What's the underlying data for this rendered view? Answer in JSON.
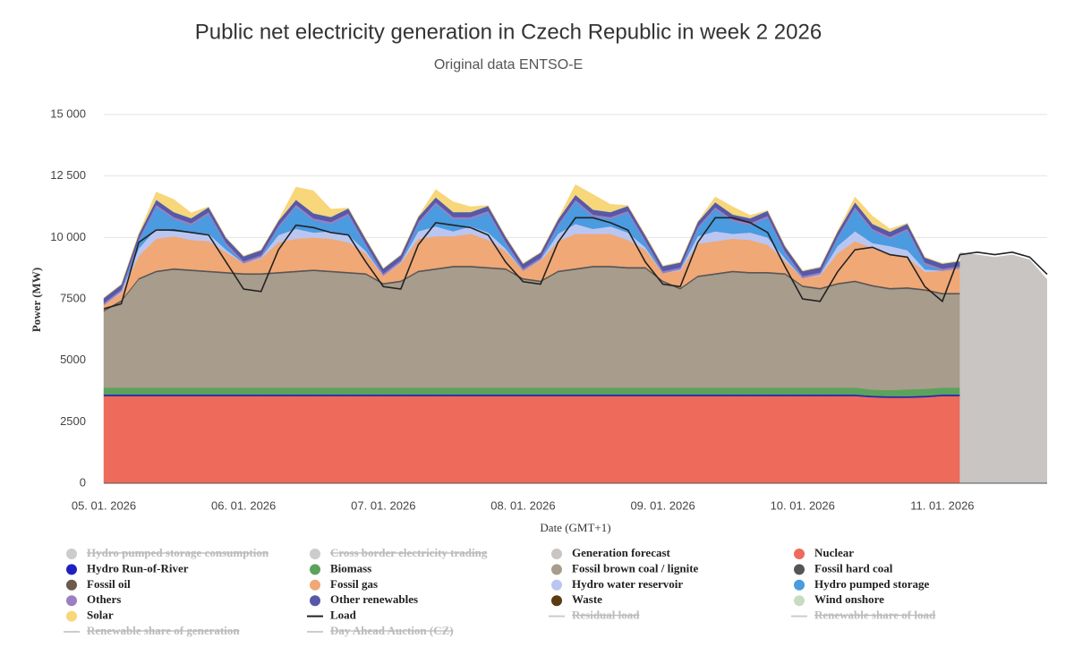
{
  "chart_data": {
    "type": "area",
    "title": "Public net electricity generation in Czech Republic in week 2 2026",
    "subtitle": "Original data ENTSO-E",
    "x_label": "Date (GMT+1)",
    "y_label": "Power (MW)",
    "ylim": [
      0,
      15000
    ],
    "yticks": [
      0,
      2500,
      5000,
      7500,
      {
        "value": 10000,
        "label": "10 000"
      },
      {
        "value": 12500,
        "label": "12 500"
      },
      {
        "value": 15000,
        "label": "15 000"
      }
    ],
    "grid": true,
    "categories": [
      "05. 01. 2026",
      null,
      null,
      null,
      null,
      null,
      null,
      null,
      "06. 01. 2026",
      null,
      null,
      null,
      null,
      null,
      null,
      null,
      "07. 01. 2026",
      null,
      null,
      null,
      null,
      null,
      null,
      null,
      "08. 01. 2026",
      null,
      null,
      null,
      null,
      null,
      null,
      null,
      "09. 01. 2026",
      null,
      null,
      null,
      null,
      null,
      null,
      null,
      "10. 01. 2026",
      null,
      null,
      null,
      null,
      null,
      null,
      null,
      "11. 01. 2026",
      null,
      null,
      null,
      null,
      null,
      null
    ],
    "series": [
      {
        "name": "Hydro pumped storage consumption",
        "type": "area",
        "color": "#cccccc",
        "visible": false
      },
      {
        "name": "Cross border electricity trading",
        "type": "area",
        "color": "#cccccc",
        "visible": false
      },
      {
        "name": "Generation forecast",
        "type": "area",
        "stack": false,
        "color": "#c8c5c2",
        "values": [
          null,
          null,
          null,
          null,
          null,
          null,
          null,
          null,
          null,
          null,
          null,
          null,
          null,
          null,
          null,
          null,
          null,
          null,
          null,
          null,
          null,
          null,
          null,
          null,
          null,
          null,
          null,
          null,
          null,
          null,
          null,
          null,
          null,
          null,
          null,
          null,
          null,
          null,
          null,
          null,
          null,
          null,
          null,
          null,
          null,
          null,
          null,
          null,
          null,
          9400,
          9300,
          9200,
          9300,
          9100,
          8300
        ]
      },
      {
        "name": "Nuclear",
        "type": "area",
        "color": "#ee6a5a",
        "values": [
          3550,
          3550,
          3550,
          3550,
          3550,
          3550,
          3550,
          3550,
          3550,
          3550,
          3550,
          3550,
          3550,
          3550,
          3550,
          3550,
          3550,
          3550,
          3550,
          3550,
          3550,
          3550,
          3550,
          3550,
          3550,
          3550,
          3550,
          3550,
          3550,
          3550,
          3550,
          3550,
          3550,
          3550,
          3550,
          3550,
          3550,
          3550,
          3550,
          3550,
          3550,
          3550,
          3550,
          3550,
          3500,
          3480,
          3480,
          3500,
          3550,
          3550,
          null,
          null,
          null,
          null,
          null
        ]
      },
      {
        "name": "Hydro Run-of-River",
        "type": "area",
        "color": "#2020c0",
        "values": [
          60,
          60,
          60,
          60,
          60,
          60,
          60,
          60,
          60,
          60,
          60,
          60,
          60,
          60,
          60,
          60,
          60,
          60,
          60,
          60,
          60,
          60,
          60,
          60,
          60,
          60,
          60,
          60,
          60,
          60,
          60,
          60,
          60,
          60,
          60,
          60,
          60,
          60,
          60,
          60,
          60,
          60,
          60,
          60,
          60,
          60,
          60,
          60,
          60,
          60,
          null,
          null,
          null,
          null,
          null
        ]
      },
      {
        "name": "Biomass",
        "type": "area",
        "color": "#5aa35a",
        "values": [
          280,
          280,
          280,
          280,
          280,
          280,
          280,
          280,
          280,
          280,
          280,
          280,
          280,
          280,
          280,
          280,
          280,
          280,
          280,
          280,
          280,
          280,
          280,
          280,
          280,
          280,
          280,
          280,
          280,
          280,
          280,
          280,
          280,
          280,
          280,
          280,
          280,
          280,
          280,
          280,
          280,
          280,
          280,
          280,
          250,
          250,
          280,
          280,
          280,
          280,
          null,
          null,
          null,
          null,
          null
        ]
      },
      {
        "name": "Fossil brown coal / lignite",
        "type": "area",
        "color": "#a89c8c",
        "values": [
          3100,
          3500,
          4400,
          4700,
          4800,
          4750,
          4700,
          4650,
          4600,
          4600,
          4650,
          4700,
          4750,
          4700,
          4650,
          4600,
          4200,
          4300,
          4700,
          4800,
          4900,
          4900,
          4850,
          4800,
          4400,
          4300,
          4700,
          4800,
          4900,
          4900,
          4850,
          4850,
          4300,
          4000,
          4500,
          4600,
          4700,
          4650,
          4650,
          4600,
          4100,
          4000,
          4200,
          4300,
          4200,
          4100,
          4100,
          4000,
          3800,
          3800,
          null,
          null,
          null,
          null,
          null
        ]
      },
      {
        "name": "Fossil hard coal",
        "type": "area",
        "color": "#555555",
        "values": [
          60,
          60,
          60,
          60,
          60,
          60,
          60,
          60,
          60,
          60,
          60,
          60,
          60,
          60,
          60,
          60,
          60,
          60,
          60,
          60,
          60,
          60,
          60,
          60,
          60,
          60,
          60,
          60,
          60,
          60,
          60,
          60,
          60,
          60,
          60,
          60,
          60,
          60,
          60,
          60,
          60,
          60,
          60,
          60,
          60,
          60,
          60,
          60,
          60,
          60,
          null,
          null,
          null,
          null,
          null
        ]
      },
      {
        "name": "Fossil oil",
        "type": "area",
        "color": "#6d5a4a",
        "values": [
          0,
          0,
          0,
          0,
          0,
          0,
          0,
          0,
          0,
          0,
          0,
          0,
          0,
          0,
          0,
          0,
          0,
          0,
          0,
          0,
          0,
          0,
          0,
          0,
          0,
          0,
          0,
          0,
          0,
          0,
          0,
          0,
          0,
          0,
          0,
          0,
          0,
          0,
          0,
          0,
          0,
          0,
          0,
          0,
          0,
          0,
          0,
          0,
          0,
          0,
          null,
          null,
          null,
          null,
          null
        ]
      },
      {
        "name": "Fossil gas",
        "type": "area",
        "color": "#f0a876",
        "values": [
          200,
          300,
          900,
          1300,
          1300,
          1200,
          1200,
          800,
          400,
          600,
          1200,
          1300,
          1300,
          1300,
          1200,
          800,
          300,
          700,
          1300,
          1300,
          1200,
          1300,
          1100,
          700,
          300,
          800,
          1200,
          1400,
          1300,
          1300,
          1100,
          700,
          300,
          700,
          1300,
          1300,
          1300,
          1300,
          1100,
          500,
          300,
          500,
          1200,
          1600,
          1500,
          1400,
          1200,
          700,
          900,
          1000,
          null,
          null,
          null,
          null,
          null
        ]
      },
      {
        "name": "Hydro water reservoir",
        "type": "area",
        "color": "#bac6f2",
        "values": [
          0,
          50,
          300,
          400,
          200,
          300,
          300,
          100,
          0,
          50,
          300,
          400,
          200,
          300,
          300,
          100,
          0,
          50,
          300,
          400,
          200,
          300,
          300,
          100,
          0,
          50,
          300,
          400,
          200,
          300,
          300,
          100,
          0,
          50,
          300,
          400,
          200,
          300,
          300,
          100,
          0,
          50,
          300,
          400,
          200,
          300,
          300,
          100,
          0,
          0,
          null,
          null,
          null,
          null,
          null
        ]
      },
      {
        "name": "Hydro pumped storage",
        "type": "area",
        "color": "#4a9be0",
        "values": [
          0,
          0,
          300,
          900,
          500,
          300,
          800,
          200,
          0,
          0,
          300,
          900,
          500,
          300,
          800,
          200,
          0,
          0,
          300,
          900,
          500,
          300,
          800,
          200,
          0,
          0,
          300,
          900,
          500,
          300,
          800,
          200,
          0,
          0,
          300,
          900,
          500,
          300,
          800,
          200,
          0,
          0,
          300,
          900,
          500,
          300,
          800,
          200,
          0,
          0,
          null,
          null,
          null,
          null,
          null
        ]
      },
      {
        "name": "Others",
        "type": "area",
        "color": "#9a80c0",
        "values": [
          80,
          80,
          80,
          80,
          80,
          80,
          80,
          80,
          80,
          80,
          80,
          80,
          80,
          80,
          80,
          80,
          80,
          80,
          80,
          80,
          80,
          80,
          80,
          80,
          80,
          80,
          80,
          80,
          80,
          80,
          80,
          80,
          80,
          80,
          80,
          80,
          80,
          80,
          80,
          80,
          80,
          80,
          80,
          80,
          80,
          80,
          80,
          80,
          80,
          80,
          null,
          null,
          null,
          null,
          null
        ]
      },
      {
        "name": "Other renewables",
        "type": "area",
        "color": "#5858a8",
        "values": [
          200,
          200,
          200,
          200,
          200,
          200,
          200,
          200,
          200,
          200,
          200,
          200,
          200,
          200,
          200,
          200,
          200,
          200,
          200,
          200,
          200,
          200,
          200,
          200,
          200,
          200,
          200,
          200,
          200,
          200,
          200,
          200,
          200,
          200,
          200,
          200,
          200,
          200,
          200,
          200,
          200,
          200,
          200,
          200,
          200,
          200,
          200,
          200,
          200,
          200,
          null,
          null,
          null,
          null,
          null
        ]
      },
      {
        "name": "Waste",
        "type": "area",
        "color": "#5a3a10",
        "values": [
          0,
          0,
          0,
          0,
          0,
          0,
          0,
          0,
          0,
          0,
          0,
          0,
          0,
          0,
          0,
          0,
          0,
          0,
          0,
          0,
          0,
          0,
          0,
          0,
          0,
          0,
          0,
          0,
          0,
          0,
          0,
          0,
          0,
          0,
          0,
          0,
          0,
          0,
          0,
          0,
          0,
          0,
          0,
          0,
          0,
          0,
          0,
          0,
          0,
          0,
          null,
          null,
          null,
          null,
          null
        ]
      },
      {
        "name": "Wind onshore",
        "type": "area",
        "color": "#c8dcc0",
        "values": [
          20,
          20,
          20,
          20,
          20,
          20,
          20,
          20,
          20,
          20,
          20,
          20,
          20,
          20,
          20,
          20,
          20,
          20,
          20,
          20,
          20,
          20,
          20,
          20,
          20,
          20,
          20,
          20,
          20,
          20,
          20,
          20,
          20,
          20,
          20,
          20,
          20,
          20,
          20,
          20,
          20,
          20,
          20,
          20,
          20,
          20,
          20,
          20,
          20,
          20,
          null,
          null,
          null,
          null,
          null
        ]
      },
      {
        "name": "Solar",
        "type": "area",
        "color": "#f8d67a",
        "values": [
          0,
          0,
          0,
          300,
          500,
          200,
          0,
          0,
          0,
          0,
          0,
          500,
          900,
          300,
          0,
          0,
          0,
          0,
          0,
          300,
          400,
          200,
          0,
          0,
          0,
          0,
          0,
          400,
          600,
          300,
          0,
          0,
          0,
          0,
          0,
          200,
          300,
          100,
          0,
          0,
          0,
          0,
          0,
          200,
          300,
          100,
          0,
          0,
          0,
          0,
          null,
          null,
          null,
          null,
          null
        ]
      },
      {
        "name": "Load",
        "type": "line",
        "color": "#222222",
        "values": [
          7100,
          7300,
          9800,
          10300,
          10300,
          10200,
          10100,
          9000,
          7900,
          7800,
          9500,
          10500,
          10400,
          10200,
          10100,
          9000,
          8000,
          7900,
          9700,
          10600,
          10500,
          10400,
          10100,
          9000,
          8200,
          8100,
          9800,
          10800,
          10800,
          10600,
          10300,
          9000,
          8100,
          8000,
          9800,
          10800,
          10800,
          10600,
          10200,
          8800,
          7500,
          7400,
          8600,
          9500,
          9600,
          9300,
          9200,
          8000,
          7400,
          9300,
          9400,
          9300,
          9400,
          9200,
          8500
        ]
      },
      {
        "name": "Residual load",
        "type": "line",
        "color": "#cccccc",
        "visible": false
      },
      {
        "name": "Renewable share of load",
        "type": "line",
        "color": "#cccccc",
        "visible": false
      },
      {
        "name": "Renewable share of generation",
        "type": "line",
        "color": "#cccccc",
        "visible": false
      },
      {
        "name": "Day Ahead Auction (CZ)",
        "type": "line",
        "color": "#cccccc",
        "visible": false
      }
    ]
  }
}
